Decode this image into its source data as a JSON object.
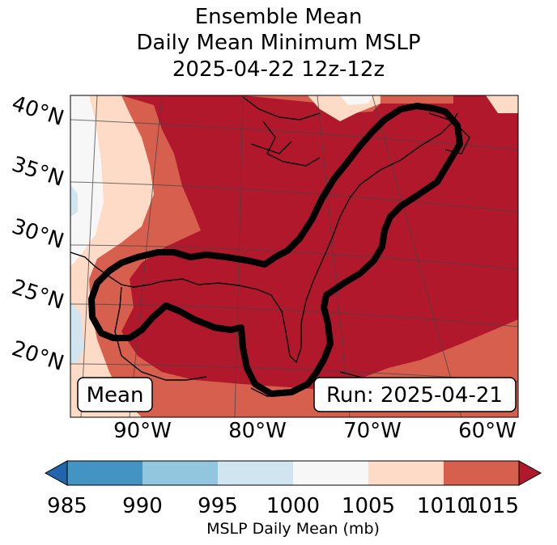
{
  "title": {
    "line1": "Ensemble Mean",
    "line2": "Daily Mean Minimum MSLP",
    "line3": "2025-04-22 12z-12z"
  },
  "map": {
    "lat_labels": [
      "40°N",
      "35°N",
      "30°N",
      "25°N",
      "20°N"
    ],
    "lon_labels": [
      "90°W",
      "80°W",
      "70°W",
      "60°W"
    ],
    "mean_label": "Mean",
    "run_label": "Run: 2025-04-21",
    "contour_color": "#000000"
  },
  "colorbar": {
    "label": "MSLP Daily Mean (mb)",
    "ticks": [
      "985",
      "990",
      "995",
      "1000",
      "1005",
      "1010",
      "1015"
    ],
    "colors": [
      "#2166ac",
      "#4393c3",
      "#92c5de",
      "#d1e5f0",
      "#f7f7f7",
      "#fddbc7",
      "#d6604d",
      "#b2182b"
    ]
  }
}
